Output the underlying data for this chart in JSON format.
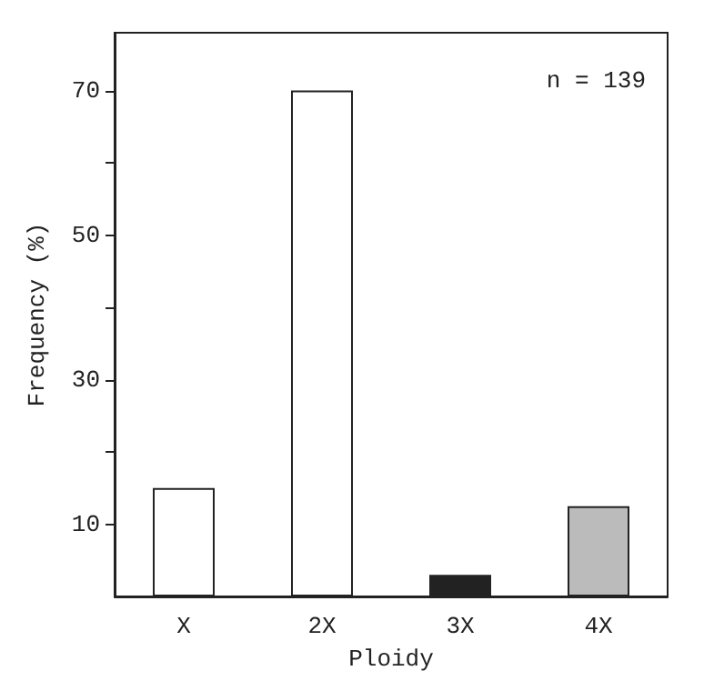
{
  "chart_data": {
    "type": "bar",
    "xlabel": "Ploidy",
    "ylabel": "Frequency (%)",
    "categories": [
      "X",
      "2X",
      "3X",
      "4X"
    ],
    "values": [
      15,
      70,
      3,
      12.5
    ],
    "colors": [
      "#ffffff",
      "#ffffff",
      "#222222",
      "#bbbbbb"
    ],
    "ylim": [
      0,
      78
    ],
    "yticks": [
      {
        "value": 10,
        "label": "10"
      },
      {
        "value": 20,
        "label": null
      },
      {
        "value": 30,
        "label": "30"
      },
      {
        "value": 40,
        "label": null
      },
      {
        "value": 50,
        "label": "50"
      },
      {
        "value": 60,
        "label": null
      },
      {
        "value": 70,
        "label": "70"
      }
    ],
    "annotations": [
      "n = 139"
    ]
  }
}
